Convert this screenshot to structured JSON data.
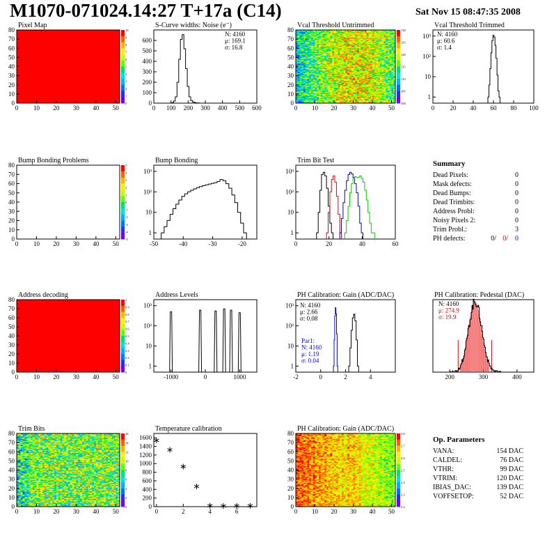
{
  "header": {
    "title": "M1070-071024.14:27 T+17a (C14)",
    "date": "Sat Nov 15 08:47:35 2008"
  },
  "colors": {
    "red_fill": "#ff0000",
    "green": "#00cc00",
    "blue": "#0000cc",
    "red": "#dd0000",
    "palette": [
      "#6a00ff",
      "#2a2aff",
      "#0070ff",
      "#00b0ff",
      "#00e0d0",
      "#00e060",
      "#60ff00",
      "#c0ff00",
      "#ffee00",
      "#ffb000",
      "#ff6000",
      "#ff0000"
    ]
  },
  "chart_data": [
    {
      "id": "pixel-map",
      "type": "heatmap",
      "title": "Pixel Map",
      "xlim": [
        0,
        52
      ],
      "ylim": [
        0,
        80
      ],
      "xticks": [
        0,
        10,
        20,
        30,
        40,
        50
      ],
      "yticks": [
        0,
        10,
        20,
        30,
        40,
        50,
        60,
        70,
        80
      ],
      "uniform_value": 10,
      "zlim": [
        0,
        10
      ],
      "palette_ticks": [
        "10",
        "9",
        "8",
        "7",
        "6",
        "5",
        "4",
        "3",
        "2",
        "1",
        "0"
      ]
    },
    {
      "id": "scurve-noise",
      "type": "line",
      "title": "S-Curve widths: Noise (e⁻)",
      "xlim": [
        0,
        600
      ],
      "ylim": [
        0,
        700
      ],
      "xticks": [
        0,
        100,
        200,
        300,
        400,
        500,
        600
      ],
      "yticks": [
        0,
        100,
        200,
        300,
        400,
        500,
        600
      ],
      "stats": [
        "N: 4160",
        "μ: 169.1",
        "σ: 16.8"
      ],
      "series": [
        {
          "x": [
            110,
            120,
            130,
            140,
            150,
            160,
            170,
            180,
            190,
            200,
            210,
            220,
            230,
            240,
            250,
            260
          ],
          "y": [
            5,
            20,
            60,
            200,
            420,
            610,
            655,
            520,
            330,
            160,
            60,
            25,
            12,
            6,
            3,
            1
          ]
        }
      ]
    },
    {
      "id": "vcal-untrimmed",
      "type": "heatmap",
      "title": "Vcal Threshold Untrimmed",
      "xlim": [
        0,
        52
      ],
      "ylim": [
        0,
        80
      ],
      "xticks": [
        0,
        10,
        20,
        30,
        40,
        50
      ],
      "yticks": [
        0,
        10,
        20,
        30,
        40,
        50,
        60,
        70,
        80
      ],
      "zlim": [
        100,
        130
      ],
      "palette_ticks": [
        "130",
        "125",
        "120",
        "115",
        "110",
        "105",
        "100"
      ]
    },
    {
      "id": "vcal-trimmed",
      "type": "line",
      "title": "Vcal Threshold Trimmed",
      "log_y": true,
      "xlim": [
        0,
        100
      ],
      "ylim": [
        0.5,
        2000
      ],
      "xticks": [
        0,
        20,
        40,
        60,
        80,
        100
      ],
      "ytick_labels": [
        "1",
        "10",
        "10²",
        "10³"
      ],
      "stats": [
        "N: 4160",
        "μ: 60.6",
        "σ: 1.4"
      ],
      "series": [
        {
          "x": [
            55,
            56,
            57,
            58,
            59,
            60,
            61,
            62,
            63,
            64,
            65,
            66
          ],
          "y": [
            1,
            4,
            25,
            150,
            600,
            1100,
            900,
            350,
            80,
            12,
            2,
            1
          ]
        }
      ]
    },
    {
      "id": "bump-bonding-problems",
      "type": "heatmap",
      "title": "Bump Bonding Problems",
      "xlim": [
        0,
        52
      ],
      "ylim": [
        0,
        80
      ],
      "xticks": [
        0,
        10,
        20,
        30,
        40,
        50
      ],
      "yticks": [
        0,
        10,
        20,
        30,
        40,
        50,
        60,
        70,
        80
      ],
      "empty": true,
      "palette_ticks": [
        "5",
        "4",
        "3",
        "2",
        "1",
        "0",
        "-1",
        "-2",
        "-3",
        "-4",
        "-5"
      ]
    },
    {
      "id": "bump-bonding",
      "type": "line",
      "title": "Bump Bonding",
      "log_y": true,
      "xlim": [
        -50,
        -15
      ],
      "ylim": [
        0.5,
        2000
      ],
      "xticks": [
        -50,
        -40,
        -30,
        -20
      ],
      "ytick_labels": [
        "1",
        "10",
        "10²",
        "10³"
      ],
      "series": [
        {
          "x": [
            -47,
            -46,
            -45,
            -44,
            -43,
            -42,
            -41,
            -40,
            -39,
            -38,
            -37,
            -36,
            -35,
            -34,
            -33,
            -32,
            -31,
            -30,
            -29,
            -28,
            -27,
            -26,
            -25,
            -24,
            -23,
            -22,
            -21,
            -20,
            -19
          ],
          "y": [
            1,
            2,
            4,
            8,
            15,
            25,
            40,
            60,
            80,
            100,
            120,
            140,
            160,
            180,
            200,
            220,
            240,
            260,
            280,
            320,
            400,
            350,
            250,
            150,
            70,
            30,
            10,
            3,
            1
          ]
        }
      ]
    },
    {
      "id": "trim-bit-test",
      "type": "line",
      "title": "Trim Bit Test",
      "log_y": true,
      "xlim": [
        0,
        60
      ],
      "ylim": [
        0.5,
        2000
      ],
      "xticks": [
        0,
        20,
        40,
        60
      ],
      "ytick_labels": [
        "1",
        "10",
        "10²",
        "10³"
      ],
      "series": [
        {
          "color": "black",
          "x": [
            13,
            14,
            15,
            16,
            17,
            18,
            19,
            20,
            21,
            22
          ],
          "y": [
            1,
            10,
            120,
            700,
            900,
            600,
            150,
            20,
            3,
            1
          ]
        },
        {
          "color": "red",
          "x": [
            19,
            20,
            21,
            22,
            23,
            24,
            25,
            26,
            27
          ],
          "y": [
            1,
            10,
            100,
            400,
            600,
            300,
            60,
            8,
            1
          ]
        },
        {
          "color": "blue",
          "x": [
            27,
            28,
            29,
            30,
            31,
            32,
            33,
            34,
            35,
            36,
            37,
            38,
            39,
            40
          ],
          "y": [
            1,
            5,
            30,
            120,
            350,
            700,
            900,
            750,
            500,
            250,
            90,
            20,
            3,
            1
          ]
        },
        {
          "color": "green",
          "x": [
            30,
            31,
            32,
            33,
            34,
            35,
            36,
            37,
            38,
            39,
            40,
            41,
            42,
            43,
            44,
            45,
            46,
            47
          ],
          "y": [
            1,
            4,
            20,
            90,
            250,
            450,
            550,
            500,
            520,
            600,
            450,
            300,
            120,
            40,
            10,
            3,
            1,
            1
          ]
        }
      ]
    },
    {
      "id": "address-decoding",
      "type": "heatmap",
      "title": "Address decoding",
      "xlim": [
        0,
        52
      ],
      "ylim": [
        0,
        80
      ],
      "xticks": [
        0,
        10,
        20,
        30,
        40,
        50
      ],
      "yticks": [
        0,
        10,
        20,
        30,
        40,
        50,
        60,
        70,
        80
      ],
      "uniform_value": 1,
      "zlim": [
        0,
        1
      ],
      "palette_ticks": [
        "1",
        "0.9",
        "0.8",
        "0.7",
        "0.6",
        "0.5",
        "0.4",
        "0.3",
        "0.2",
        "0.1",
        "0"
      ]
    },
    {
      "id": "address-levels",
      "type": "line",
      "title": "Address Levels",
      "log_y": true,
      "xlim": [
        -1500,
        1500
      ],
      "ylim": [
        0.5,
        2000
      ],
      "xticks": [
        -1000,
        0,
        1000
      ],
      "ytick_labels": [
        "1",
        "10",
        "10²",
        "10³"
      ],
      "peaks": [
        -1000,
        -150,
        300,
        550,
        750,
        1000
      ],
      "peak_heights": [
        500,
        600,
        550,
        700,
        600,
        450
      ]
    },
    {
      "id": "ph-gain",
      "type": "line",
      "title": "PH Calibration: Gain (ADC/DAC)",
      "log_y": true,
      "xlim": [
        -2,
        6
      ],
      "ylim": [
        0.5,
        2000
      ],
      "xticks": [
        -2,
        0,
        2,
        4
      ],
      "ytick_labels": [
        "1",
        "10",
        "10²",
        "10³"
      ],
      "stats": [
        "N: 4160",
        "μ: 2.66",
        "σ: 0.08"
      ],
      "stats2": [
        "Par1:",
        "N: 4160",
        "μ: 1.19",
        "σ: 0.04"
      ],
      "series": [
        {
          "color": "black",
          "x": [
            2.3,
            2.4,
            2.5,
            2.6,
            2.7,
            2.8,
            2.9,
            3.0
          ],
          "y": [
            1,
            8,
            60,
            250,
            380,
            180,
            20,
            1
          ]
        },
        {
          "color": "blue",
          "x": [
            1.05,
            1.1,
            1.15,
            1.2,
            1.25,
            1.3,
            1.35
          ],
          "y": [
            1,
            20,
            300,
            800,
            400,
            40,
            1
          ]
        }
      ]
    },
    {
      "id": "ph-pedestal",
      "type": "line",
      "title": "PH Calibration: Pedestal (DAC)",
      "xlim": [
        150,
        450
      ],
      "ylim": [
        0,
        90
      ],
      "xticks": [
        200,
        300,
        400
      ],
      "stats": [
        "N: 4160",
        "μ: 274.9",
        "σ: 19.9"
      ],
      "mean": 274.9,
      "sigma": 19.9,
      "peak": 88
    },
    {
      "id": "trim-bits",
      "type": "heatmap",
      "title": "Trim Bits",
      "xlim": [
        0,
        52
      ],
      "ylim": [
        0,
        80
      ],
      "xticks": [
        0,
        10,
        20,
        30,
        40,
        50
      ],
      "yticks": [
        0,
        10,
        20,
        30,
        40,
        50,
        60,
        70,
        80
      ],
      "zlim": [
        0,
        16
      ],
      "palette_ticks": [
        "16",
        "14",
        "12",
        "10",
        "8",
        "6",
        "4",
        "2",
        "0"
      ]
    },
    {
      "id": "temperature-calibration",
      "type": "scatter",
      "title": "Temperature calibration",
      "xlim": [
        -0.2,
        7.5
      ],
      "ylim": [
        0,
        1700
      ],
      "xticks": [
        0,
        2,
        4,
        6
      ],
      "yticks": [
        0,
        200,
        400,
        600,
        800,
        1000,
        1200,
        1400,
        1600
      ],
      "x": [
        0,
        1,
        2,
        3,
        4,
        5,
        6,
        7
      ],
      "y": [
        1540,
        1320,
        930,
        470,
        20,
        15,
        15,
        20
      ]
    },
    {
      "id": "ph-gain-map",
      "type": "heatmap",
      "title": "PH Calibration: Gain (ADC/DAC)",
      "xlim": [
        0,
        52
      ],
      "ylim": [
        0,
        80
      ],
      "xticks": [
        0,
        10,
        20,
        30,
        40,
        50
      ],
      "yticks": [
        0,
        10,
        20,
        30,
        40,
        50,
        60,
        70,
        80
      ],
      "zlim": [
        2.1,
        2.8
      ],
      "palette_ticks": [
        "2.8",
        "2.7",
        "2.6",
        "2.5",
        "2.4",
        "2.3",
        "2.2"
      ]
    }
  ],
  "summary": {
    "title": "Summary",
    "rows": [
      {
        "label": "Dead Pixels:",
        "value": "0"
      },
      {
        "label": "Mask defects:",
        "value": "0"
      },
      {
        "label": "Dead Bumps:",
        "value": "0"
      },
      {
        "label": "Dead Trimbits:",
        "value": "0"
      },
      {
        "label": "Address Probl:",
        "value": "0"
      },
      {
        "label": "Noisy Pixels 2:",
        "value": "0"
      },
      {
        "label": "Trim Probl.:",
        "value": "3"
      }
    ],
    "ph_label": "PH defects:",
    "ph_values": [
      "0/",
      "0/",
      "0"
    ]
  },
  "op_params": {
    "title": "Op. Parameters",
    "rows": [
      {
        "label": "VANA:",
        "value": "154 DAC"
      },
      {
        "label": "CALDEL:",
        "value": "76 DAC"
      },
      {
        "label": "VTHR:",
        "value": "99 DAC"
      },
      {
        "label": "VTRIM:",
        "value": "120 DAC"
      },
      {
        "label": "IBIAS_DAC:",
        "value": "139 DAC"
      },
      {
        "label": "VOFFSETOP:",
        "value": "52 DAC"
      }
    ]
  }
}
